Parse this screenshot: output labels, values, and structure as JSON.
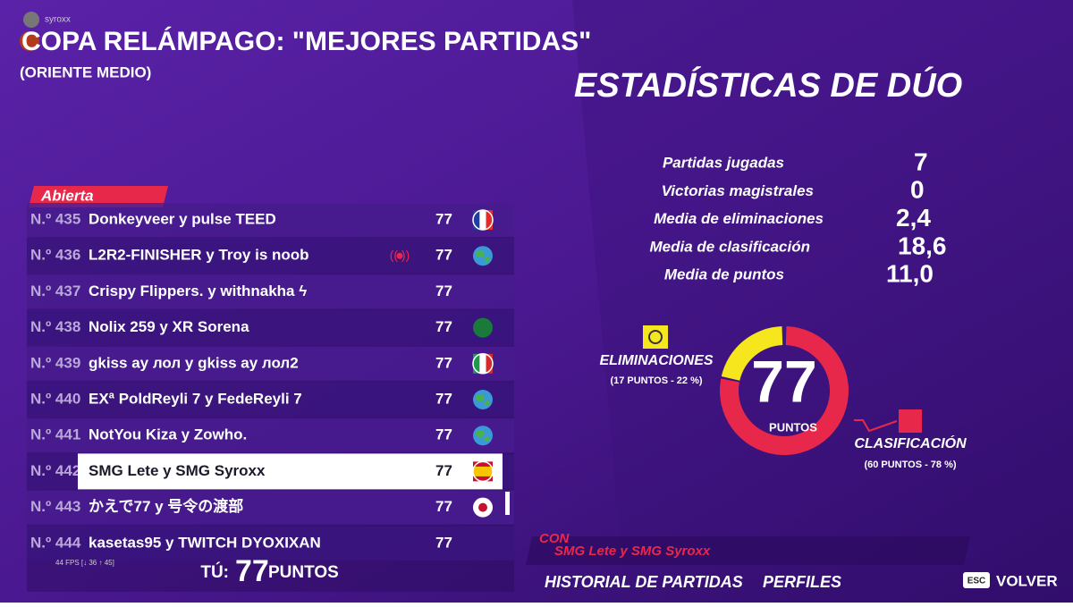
{
  "header": {
    "user": "syroxx",
    "title": "COPA RELÁMPAGO: \"MEJORES PARTIDAS\"",
    "subtitle": "(ORIENTE MEDIO)"
  },
  "stats": {
    "title": "ESTADÍSTICAS DE DÚO",
    "items": [
      {
        "label": "Partidas jugadas",
        "value": "7"
      },
      {
        "label": "Victorias magistrales",
        "value": "0"
      },
      {
        "label": "Media de eliminaciones",
        "value": "2,4"
      },
      {
        "label": "Media de clasificación",
        "value": "18,6"
      },
      {
        "label": "Media de puntos",
        "value": "11,0"
      }
    ]
  },
  "leaderboard": {
    "tab": "Abierta",
    "rows": [
      {
        "rank": "N.º 435",
        "name": "Donkeyveer y pulse TEED",
        "points": 77
      },
      {
        "rank": "N.º 436",
        "name": "L2R2-FINISHER y Troy is noob",
        "points": 77
      },
      {
        "rank": "N.º 437",
        "name": "Crispy Flippers. y withnakha ϟ",
        "points": 77
      },
      {
        "rank": "N.º 438",
        "name": "Nolix 259 y XR Sorena",
        "points": 77
      },
      {
        "rank": "N.º 439",
        "name": "gkiss ay лол y gkiss ay лол2",
        "points": 77
      },
      {
        "rank": "N.º 440",
        "name": "EXª PoldReyli 7 y FedeReyli 7",
        "points": 77
      },
      {
        "rank": "N.º 441",
        "name": "NotYou Kiza y Zowho.",
        "points": 77
      },
      {
        "rank": "N.º 442",
        "name": "SMG Lete y SMG Syroxx",
        "points": 77
      },
      {
        "rank": "N.º 443",
        "name": "かえで77 y 号令の渡部",
        "points": 77
      },
      {
        "rank": "N.º 444",
        "name": "kasetas95 y TWITCH DYOXIXAN",
        "points": 77
      }
    ],
    "fps": "44 FPS [↓ 36 ↑ 45]",
    "you": {
      "label": "TÚ:",
      "points": 77,
      "unit": "PUNTOS"
    }
  },
  "donut": {
    "total": 77,
    "total_label": "PUNTOS",
    "eliminations": {
      "label": "ELIMINACIONES",
      "detail": "(17 PUNTOS - 22 %)",
      "share": 22
    },
    "placement": {
      "label": "CLASIFICACIÓN",
      "detail": "(60 PUNTOS - 78 %)",
      "share": 78
    }
  },
  "team": {
    "label": "CON",
    "name": "SMG Lete y SMG Syroxx"
  },
  "footer": {
    "history": "HISTORIAL DE PARTIDAS",
    "profiles": "PERFILES",
    "esc": "ESC",
    "back": "VOLVER"
  }
}
